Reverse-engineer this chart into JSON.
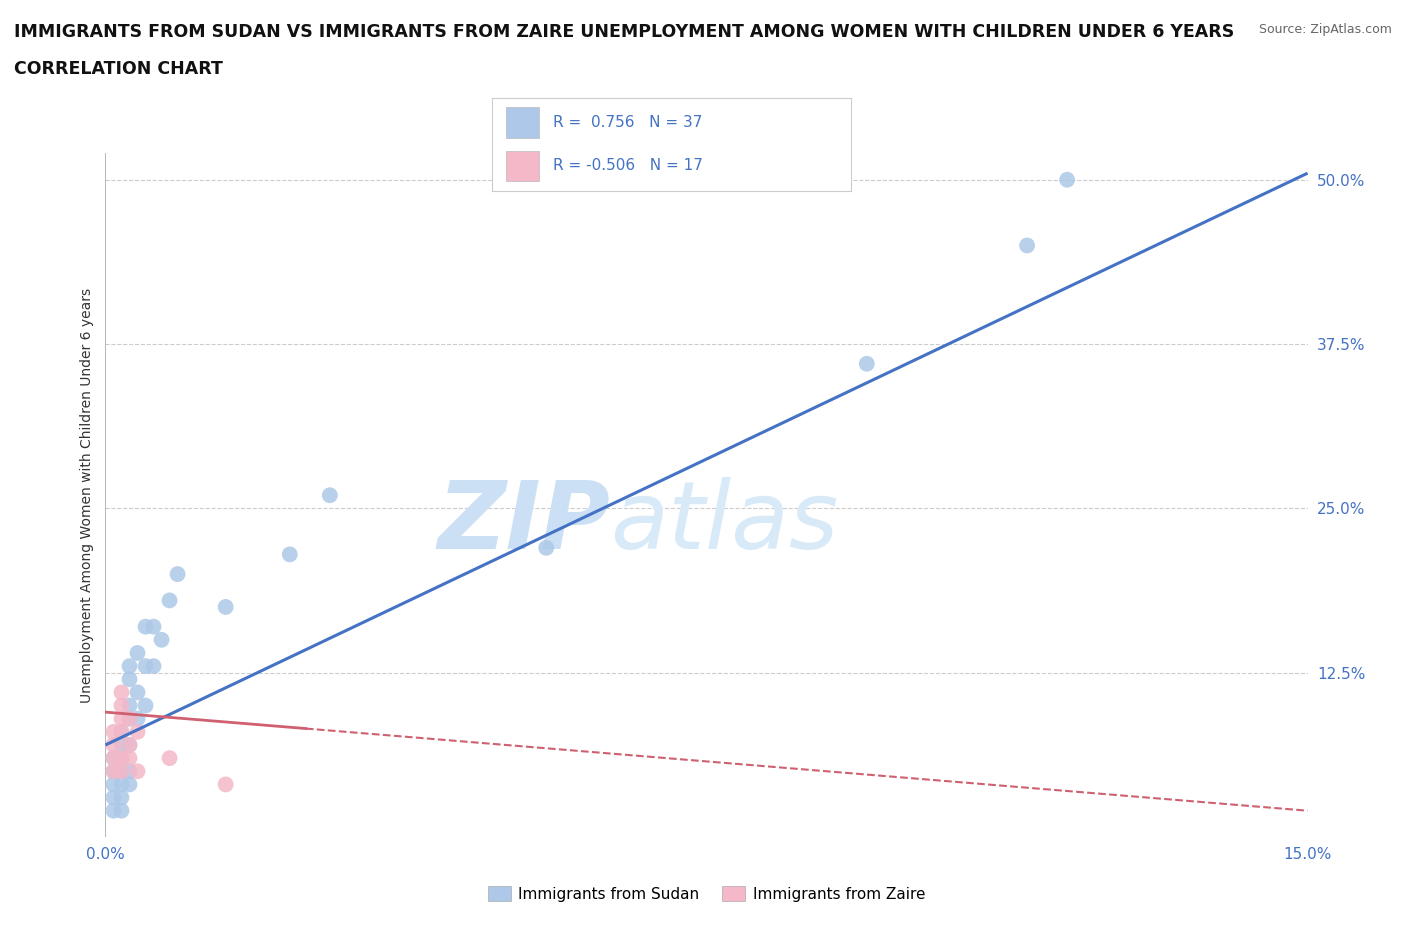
{
  "title_line1": "IMMIGRANTS FROM SUDAN VS IMMIGRANTS FROM ZAIRE UNEMPLOYMENT AMONG WOMEN WITH CHILDREN UNDER 6 YEARS",
  "title_line2": "CORRELATION CHART",
  "source_text": "Source: ZipAtlas.com",
  "ylabel": "Unemployment Among Women with Children Under 6 years",
  "xlim": [
    0.0,
    0.15
  ],
  "ylim": [
    0.0,
    0.52
  ],
  "yticks_right": [
    0.0,
    0.125,
    0.25,
    0.375,
    0.5
  ],
  "ytick_labels_right": [
    "",
    "12.5%",
    "25.0%",
    "37.5%",
    "50.0%"
  ],
  "sudan_R": 0.756,
  "sudan_N": 37,
  "zaire_R": -0.506,
  "zaire_N": 17,
  "sudan_color": "#adc8e8",
  "sudan_line_color": "#4472c4",
  "zaire_color": "#f4b8c8",
  "zaire_line_color": "#d06070",
  "sudan_scatter_x": [
    0.001,
    0.001,
    0.001,
    0.001,
    0.001,
    0.002,
    0.002,
    0.002,
    0.002,
    0.002,
    0.002,
    0.002,
    0.003,
    0.003,
    0.003,
    0.003,
    0.003,
    0.003,
    0.003,
    0.004,
    0.004,
    0.004,
    0.005,
    0.005,
    0.005,
    0.006,
    0.006,
    0.007,
    0.008,
    0.009,
    0.015,
    0.023,
    0.028,
    0.055,
    0.095,
    0.12,
    0.115
  ],
  "sudan_scatter_y": [
    0.02,
    0.03,
    0.04,
    0.05,
    0.06,
    0.02,
    0.03,
    0.04,
    0.05,
    0.06,
    0.07,
    0.08,
    0.04,
    0.05,
    0.07,
    0.09,
    0.1,
    0.12,
    0.13,
    0.09,
    0.11,
    0.14,
    0.1,
    0.13,
    0.16,
    0.13,
    0.16,
    0.15,
    0.18,
    0.2,
    0.175,
    0.215,
    0.26,
    0.22,
    0.36,
    0.5,
    0.45
  ],
  "zaire_scatter_x": [
    0.001,
    0.001,
    0.001,
    0.001,
    0.002,
    0.002,
    0.002,
    0.002,
    0.002,
    0.002,
    0.003,
    0.003,
    0.003,
    0.004,
    0.004,
    0.008,
    0.015
  ],
  "zaire_scatter_y": [
    0.05,
    0.06,
    0.07,
    0.08,
    0.05,
    0.06,
    0.08,
    0.1,
    0.11,
    0.09,
    0.06,
    0.07,
    0.09,
    0.05,
    0.08,
    0.06,
    0.04
  ],
  "sudan_line_x": [
    0.0,
    0.15
  ],
  "sudan_line_y": [
    0.07,
    0.505
  ],
  "zaire_line_x": [
    0.0,
    0.15
  ],
  "zaire_line_y": [
    0.095,
    0.02
  ],
  "watermark_zip": "ZIP",
  "watermark_atlas": "atlas",
  "watermark_color": "#cce0f5",
  "grid_color": "#cccccc",
  "background_color": "#ffffff",
  "title_fontsize": 12.5,
  "axis_label_fontsize": 10,
  "tick_fontsize": 11,
  "legend_sudan_text": "R =  0.756   N = 37",
  "legend_zaire_text": "R = -0.506   N = 17",
  "bottom_legend_sudan": "Immigrants from Sudan",
  "bottom_legend_zaire": "Immigrants from Zaire"
}
